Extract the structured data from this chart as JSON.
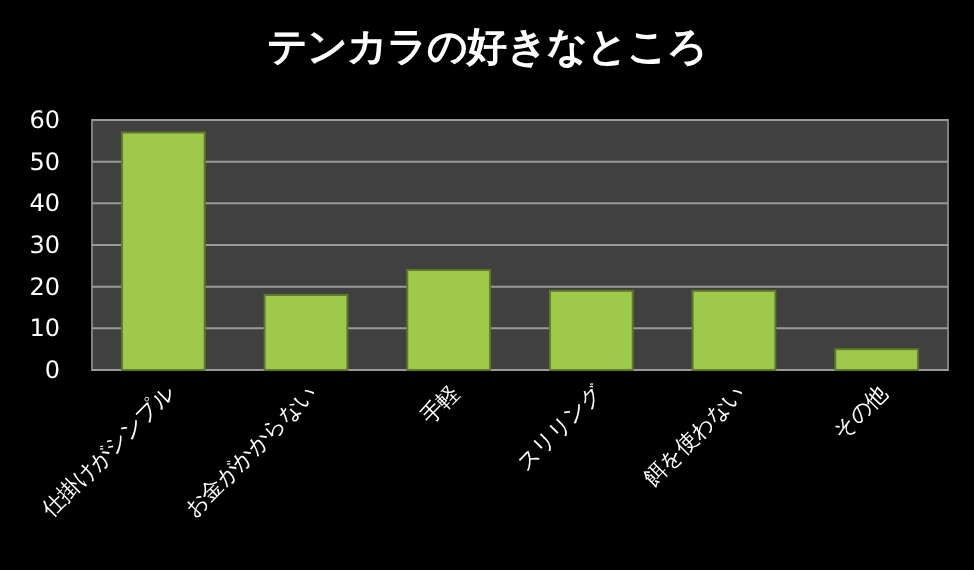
{
  "chart_data": {
    "type": "bar",
    "title": "テンカラの好きなところ",
    "categories": [
      "仕掛けがシンプル",
      "お金がかからない",
      "手軽",
      "スリリング",
      "餌を使わない",
      "その他"
    ],
    "values": [
      57,
      18,
      24,
      19,
      19,
      5
    ],
    "color": "#9ec94a",
    "ylim": [
      0,
      60
    ],
    "yticks": [
      0,
      10,
      20,
      30,
      40,
      50,
      60
    ],
    "grid": "y"
  }
}
